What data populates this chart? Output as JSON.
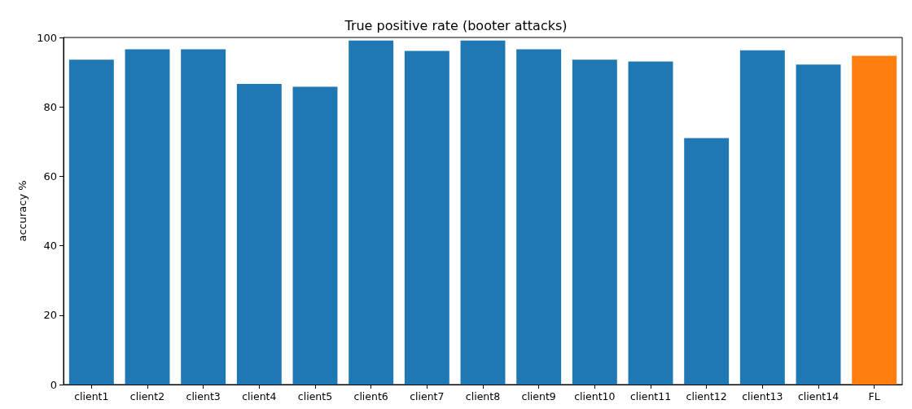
{
  "chart_data": {
    "type": "bar",
    "title": "True positive rate (booter attacks)",
    "ylabel": "accuracy %",
    "categories": [
      "client1",
      "client2",
      "client3",
      "client4",
      "client5",
      "client6",
      "client7",
      "client8",
      "client9",
      "client10",
      "client11",
      "client12",
      "client13",
      "client14",
      "FL"
    ],
    "values": [
      93.6,
      96.6,
      96.6,
      86.6,
      85.8,
      99.1,
      96.1,
      99.1,
      96.6,
      93.6,
      93.1,
      71.0,
      96.3,
      92.2,
      94.7
    ],
    "colors": [
      "#1f77b4",
      "#1f77b4",
      "#1f77b4",
      "#1f77b4",
      "#1f77b4",
      "#1f77b4",
      "#1f77b4",
      "#1f77b4",
      "#1f77b4",
      "#1f77b4",
      "#1f77b4",
      "#1f77b4",
      "#1f77b4",
      "#1f77b4",
      "#ff7f0e"
    ],
    "ylim": [
      0,
      100
    ],
    "yticks": [
      0,
      20,
      40,
      60,
      80,
      100
    ],
    "grid": false
  }
}
